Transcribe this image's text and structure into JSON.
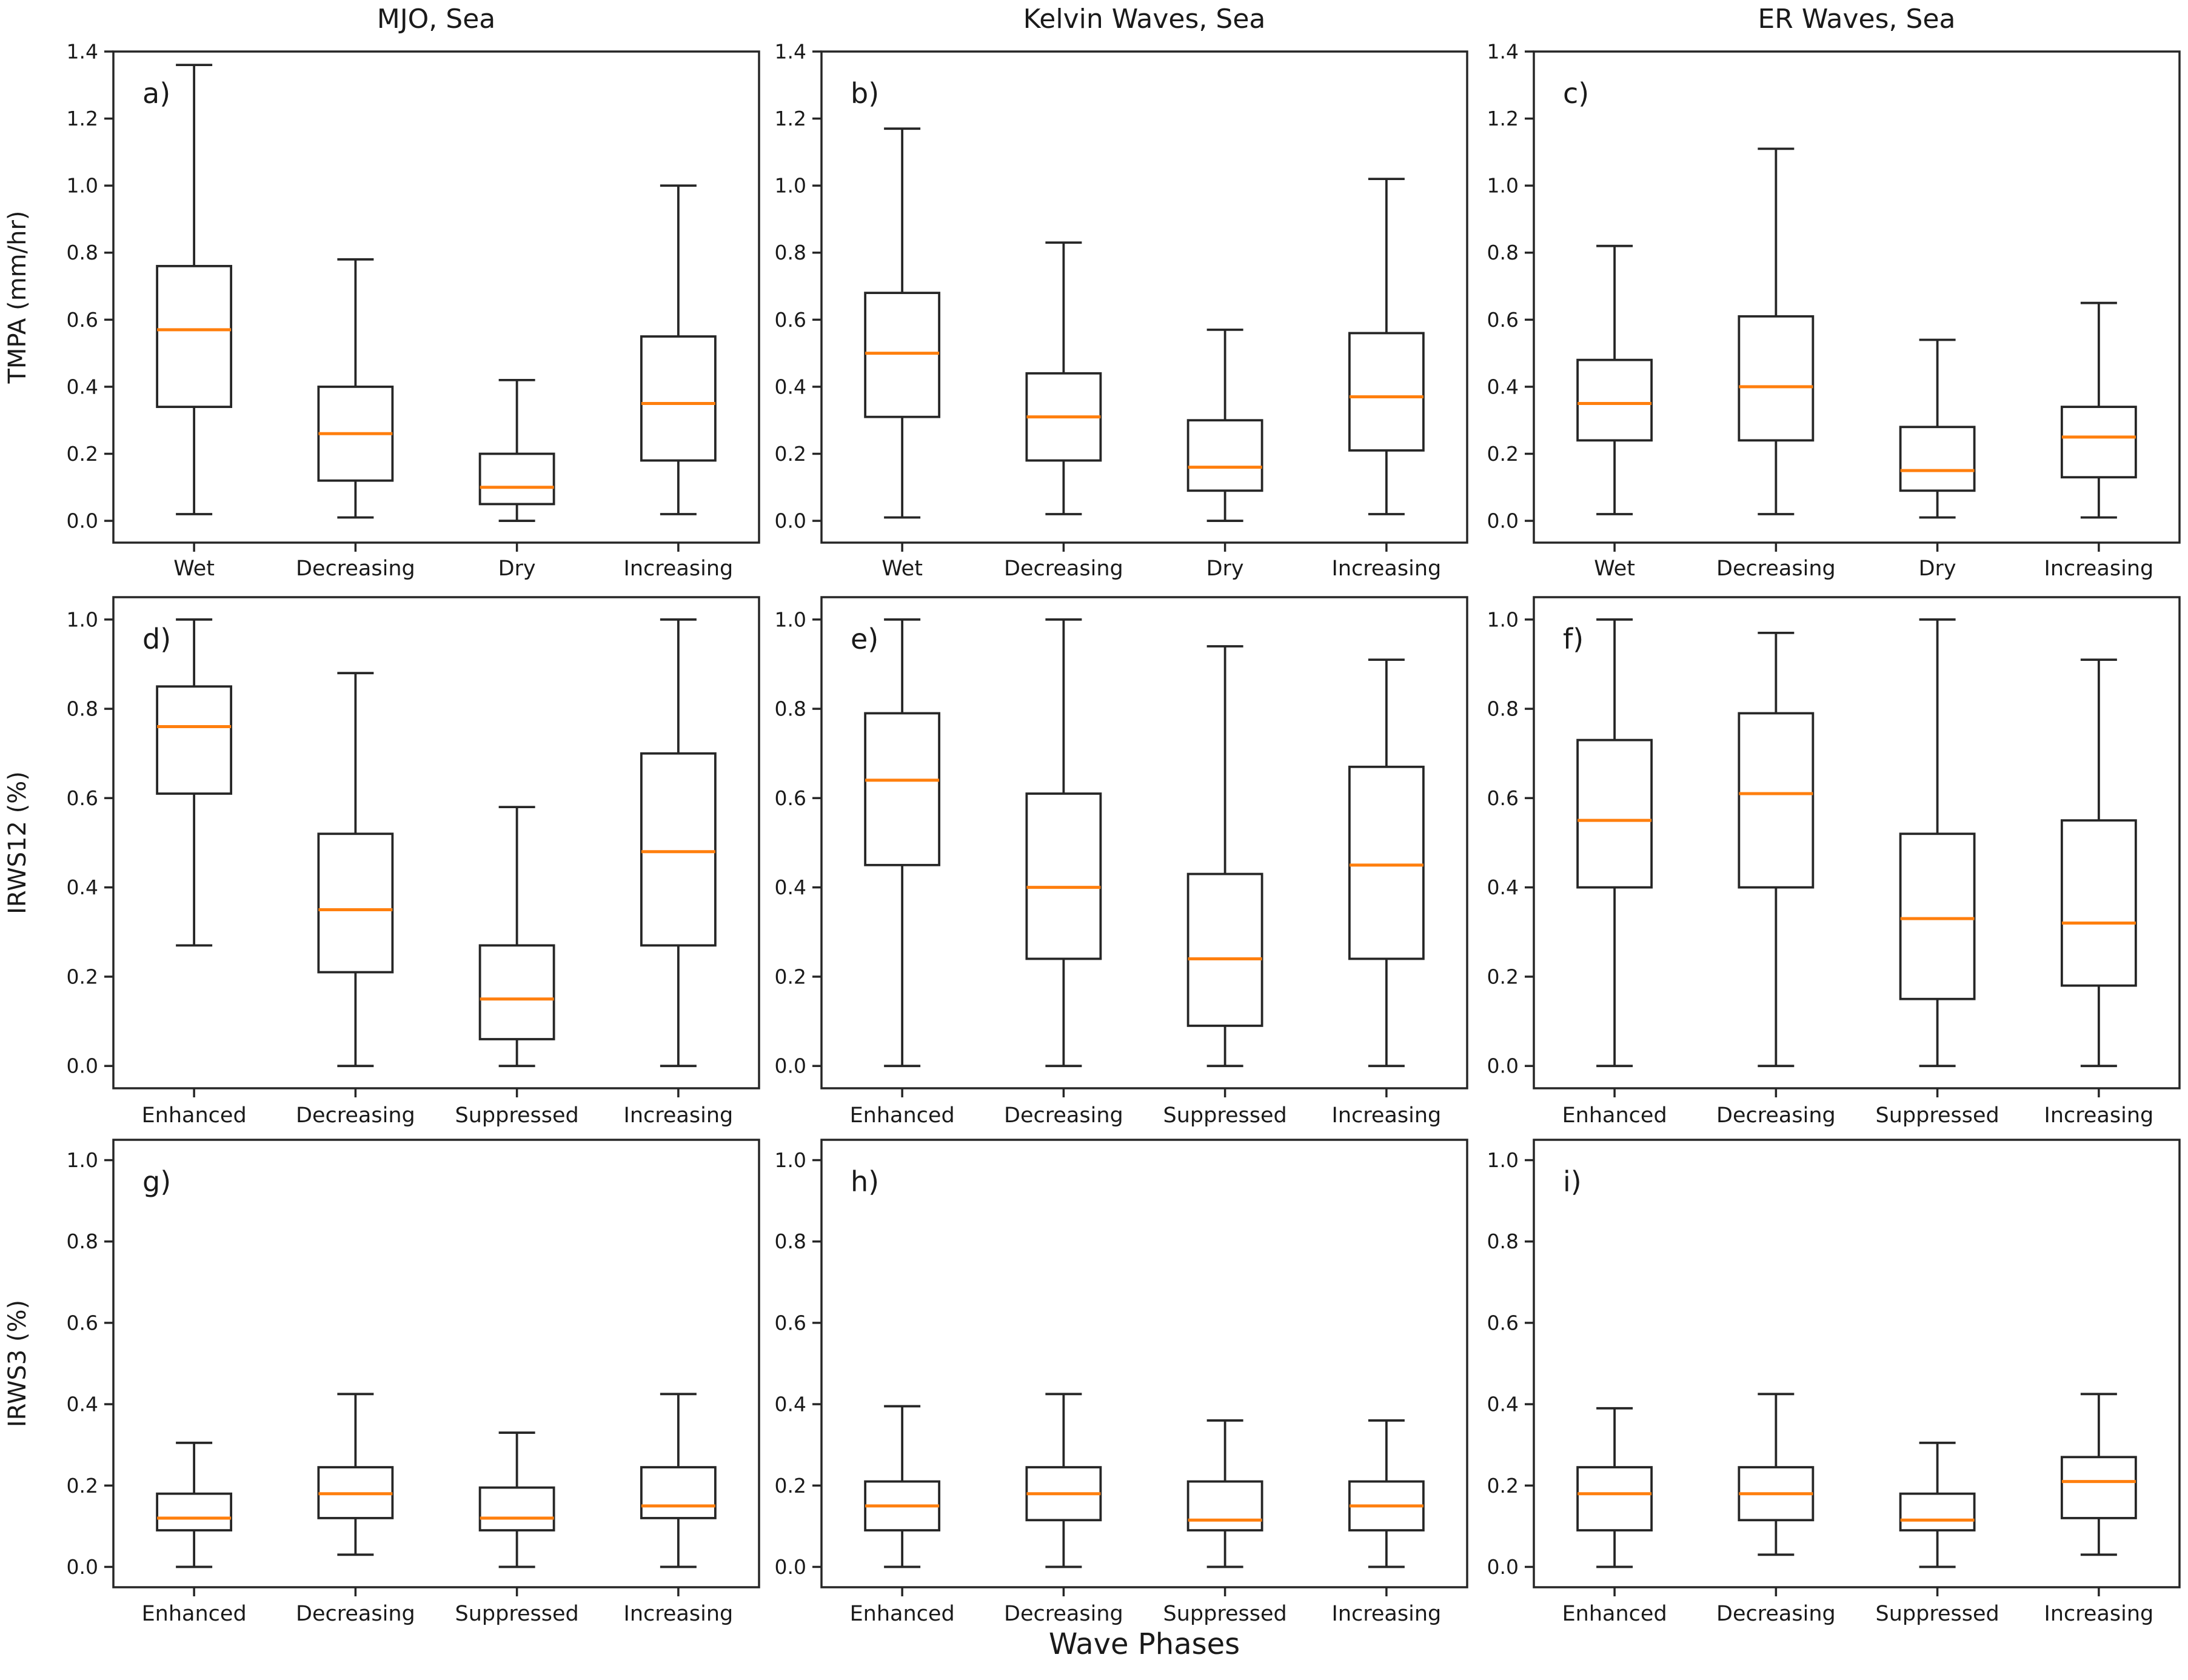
{
  "figure": {
    "background_color": "#ffffff",
    "line_color": "#262626",
    "median_color": "#ff7f0e",
    "xlabel": "Wave Phases"
  },
  "chart_data": {
    "type": "boxplot",
    "grid": "3x3",
    "legend": "none",
    "gridlines": "off",
    "stats_order": [
      "whisker_low",
      "q1",
      "median",
      "q3",
      "whisker_high"
    ],
    "xlabel": "Wave Phases",
    "column_titles": [
      "MJO, Sea",
      "Kelvin Waves, Sea",
      "ER Waves, Sea"
    ],
    "rows": [
      {
        "ylabel": "TMPA (mm/hr)",
        "ylim": [
          -0.065,
          1.4
        ],
        "yticks": [
          "0.0",
          "0.2",
          "0.4",
          "0.6",
          "0.8",
          "1.0",
          "1.2",
          "1.4"
        ]
      },
      {
        "ylabel": "IRWS12 (%)",
        "ylim": [
          -0.05,
          1.05
        ],
        "yticks": [
          "0.0",
          "0.2",
          "0.4",
          "0.6",
          "0.8",
          "1.0"
        ]
      },
      {
        "ylabel": "IRWS3 (%)",
        "ylim": [
          -0.05,
          1.05
        ],
        "yticks": [
          "0.0",
          "0.2",
          "0.4",
          "0.6",
          "0.8",
          "1.0"
        ]
      }
    ],
    "panels": [
      {
        "letter": "a)",
        "row": 0,
        "col": 0,
        "title": "MJO, Sea",
        "categories": [
          "Wet",
          "Decreasing",
          "Dry",
          "Increasing"
        ],
        "boxes": [
          {
            "category": "Wet",
            "whisker_low": 0.02,
            "q1": 0.34,
            "median": 0.57,
            "q3": 0.76,
            "whisker_high": 1.36
          },
          {
            "category": "Decreasing",
            "whisker_low": 0.01,
            "q1": 0.12,
            "median": 0.26,
            "q3": 0.4,
            "whisker_high": 0.78
          },
          {
            "category": "Dry",
            "whisker_low": 0.0,
            "q1": 0.05,
            "median": 0.1,
            "q3": 0.2,
            "whisker_high": 0.42
          },
          {
            "category": "Increasing",
            "whisker_low": 0.02,
            "q1": 0.18,
            "median": 0.35,
            "q3": 0.55,
            "whisker_high": 1.0
          }
        ]
      },
      {
        "letter": "b)",
        "row": 0,
        "col": 1,
        "title": "Kelvin Waves, Sea",
        "categories": [
          "Wet",
          "Decreasing",
          "Dry",
          "Increasing"
        ],
        "boxes": [
          {
            "category": "Wet",
            "whisker_low": 0.01,
            "q1": 0.31,
            "median": 0.5,
            "q3": 0.68,
            "whisker_high": 1.17
          },
          {
            "category": "Decreasing",
            "whisker_low": 0.02,
            "q1": 0.18,
            "median": 0.31,
            "q3": 0.44,
            "whisker_high": 0.83
          },
          {
            "category": "Dry",
            "whisker_low": 0.0,
            "q1": 0.09,
            "median": 0.16,
            "q3": 0.3,
            "whisker_high": 0.57
          },
          {
            "category": "Increasing",
            "whisker_low": 0.02,
            "q1": 0.21,
            "median": 0.37,
            "q3": 0.56,
            "whisker_high": 1.02
          }
        ]
      },
      {
        "letter": "c)",
        "row": 0,
        "col": 2,
        "title": "ER Waves, Sea",
        "categories": [
          "Wet",
          "Decreasing",
          "Dry",
          "Increasing"
        ],
        "boxes": [
          {
            "category": "Wet",
            "whisker_low": 0.02,
            "q1": 0.24,
            "median": 0.35,
            "q3": 0.48,
            "whisker_high": 0.82
          },
          {
            "category": "Decreasing",
            "whisker_low": 0.02,
            "q1": 0.24,
            "median": 0.4,
            "q3": 0.61,
            "whisker_high": 1.11
          },
          {
            "category": "Dry",
            "whisker_low": 0.01,
            "q1": 0.09,
            "median": 0.15,
            "q3": 0.28,
            "whisker_high": 0.54
          },
          {
            "category": "Increasing",
            "whisker_low": 0.01,
            "q1": 0.13,
            "median": 0.25,
            "q3": 0.34,
            "whisker_high": 0.65
          }
        ]
      },
      {
        "letter": "d)",
        "row": 1,
        "col": 0,
        "title": "",
        "categories": [
          "Enhanced",
          "Decreasing",
          "Suppressed",
          "Increasing"
        ],
        "boxes": [
          {
            "category": "Enhanced",
            "whisker_low": 0.27,
            "q1": 0.61,
            "median": 0.76,
            "q3": 0.85,
            "whisker_high": 1.0
          },
          {
            "category": "Decreasing",
            "whisker_low": 0.0,
            "q1": 0.21,
            "median": 0.35,
            "q3": 0.52,
            "whisker_high": 0.88
          },
          {
            "category": "Suppressed",
            "whisker_low": 0.0,
            "q1": 0.06,
            "median": 0.15,
            "q3": 0.27,
            "whisker_high": 0.58
          },
          {
            "category": "Increasing",
            "whisker_low": 0.0,
            "q1": 0.27,
            "median": 0.48,
            "q3": 0.7,
            "whisker_high": 1.0
          }
        ]
      },
      {
        "letter": "e)",
        "row": 1,
        "col": 1,
        "title": "",
        "categories": [
          "Enhanced",
          "Decreasing",
          "Suppressed",
          "Increasing"
        ],
        "boxes": [
          {
            "category": "Enhanced",
            "whisker_low": 0.0,
            "q1": 0.45,
            "median": 0.64,
            "q3": 0.79,
            "whisker_high": 1.0
          },
          {
            "category": "Decreasing",
            "whisker_low": 0.0,
            "q1": 0.24,
            "median": 0.4,
            "q3": 0.61,
            "whisker_high": 1.0
          },
          {
            "category": "Suppressed",
            "whisker_low": 0.0,
            "q1": 0.09,
            "median": 0.24,
            "q3": 0.43,
            "whisker_high": 0.94
          },
          {
            "category": "Increasing",
            "whisker_low": 0.0,
            "q1": 0.24,
            "median": 0.45,
            "q3": 0.67,
            "whisker_high": 0.91
          }
        ]
      },
      {
        "letter": "f)",
        "row": 1,
        "col": 2,
        "title": "",
        "categories": [
          "Enhanced",
          "Decreasing",
          "Suppressed",
          "Increasing"
        ],
        "boxes": [
          {
            "category": "Enhanced",
            "whisker_low": 0.0,
            "q1": 0.4,
            "median": 0.55,
            "q3": 0.73,
            "whisker_high": 1.0
          },
          {
            "category": "Decreasing",
            "whisker_low": 0.0,
            "q1": 0.4,
            "median": 0.61,
            "q3": 0.79,
            "whisker_high": 0.97
          },
          {
            "category": "Suppressed",
            "whisker_low": 0.0,
            "q1": 0.15,
            "median": 0.33,
            "q3": 0.52,
            "whisker_high": 1.0
          },
          {
            "category": "Increasing",
            "whisker_low": 0.0,
            "q1": 0.18,
            "median": 0.32,
            "q3": 0.55,
            "whisker_high": 0.91
          }
        ]
      },
      {
        "letter": "g)",
        "row": 2,
        "col": 0,
        "title": "",
        "categories": [
          "Enhanced",
          "Decreasing",
          "Suppressed",
          "Increasing"
        ],
        "boxes": [
          {
            "category": "Enhanced",
            "whisker_low": 0.0,
            "q1": 0.09,
            "median": 0.12,
            "q3": 0.18,
            "whisker_high": 0.305
          },
          {
            "category": "Decreasing",
            "whisker_low": 0.03,
            "q1": 0.12,
            "median": 0.18,
            "q3": 0.245,
            "whisker_high": 0.425
          },
          {
            "category": "Suppressed",
            "whisker_low": 0.0,
            "q1": 0.09,
            "median": 0.12,
            "q3": 0.195,
            "whisker_high": 0.33
          },
          {
            "category": "Increasing",
            "whisker_low": 0.0,
            "q1": 0.12,
            "median": 0.15,
            "q3": 0.245,
            "whisker_high": 0.425
          }
        ]
      },
      {
        "letter": "h)",
        "row": 2,
        "col": 1,
        "title": "",
        "categories": [
          "Enhanced",
          "Decreasing",
          "Suppressed",
          "Increasing"
        ],
        "boxes": [
          {
            "category": "Enhanced",
            "whisker_low": 0.0,
            "q1": 0.09,
            "median": 0.15,
            "q3": 0.21,
            "whisker_high": 0.395
          },
          {
            "category": "Decreasing",
            "whisker_low": 0.0,
            "q1": 0.115,
            "median": 0.18,
            "q3": 0.245,
            "whisker_high": 0.425
          },
          {
            "category": "Suppressed",
            "whisker_low": 0.0,
            "q1": 0.09,
            "median": 0.115,
            "q3": 0.21,
            "whisker_high": 0.36
          },
          {
            "category": "Increasing",
            "whisker_low": 0.0,
            "q1": 0.09,
            "median": 0.15,
            "q3": 0.21,
            "whisker_high": 0.36
          }
        ]
      },
      {
        "letter": "i)",
        "row": 2,
        "col": 2,
        "title": "",
        "categories": [
          "Enhanced",
          "Decreasing",
          "Suppressed",
          "Increasing"
        ],
        "boxes": [
          {
            "category": "Enhanced",
            "whisker_low": 0.0,
            "q1": 0.09,
            "median": 0.18,
            "q3": 0.245,
            "whisker_high": 0.39
          },
          {
            "category": "Decreasing",
            "whisker_low": 0.03,
            "q1": 0.115,
            "median": 0.18,
            "q3": 0.245,
            "whisker_high": 0.425
          },
          {
            "category": "Suppressed",
            "whisker_low": 0.0,
            "q1": 0.09,
            "median": 0.115,
            "q3": 0.18,
            "whisker_high": 0.305
          },
          {
            "category": "Increasing",
            "whisker_low": 0.03,
            "q1": 0.12,
            "median": 0.21,
            "q3": 0.27,
            "whisker_high": 0.425
          }
        ]
      }
    ]
  }
}
